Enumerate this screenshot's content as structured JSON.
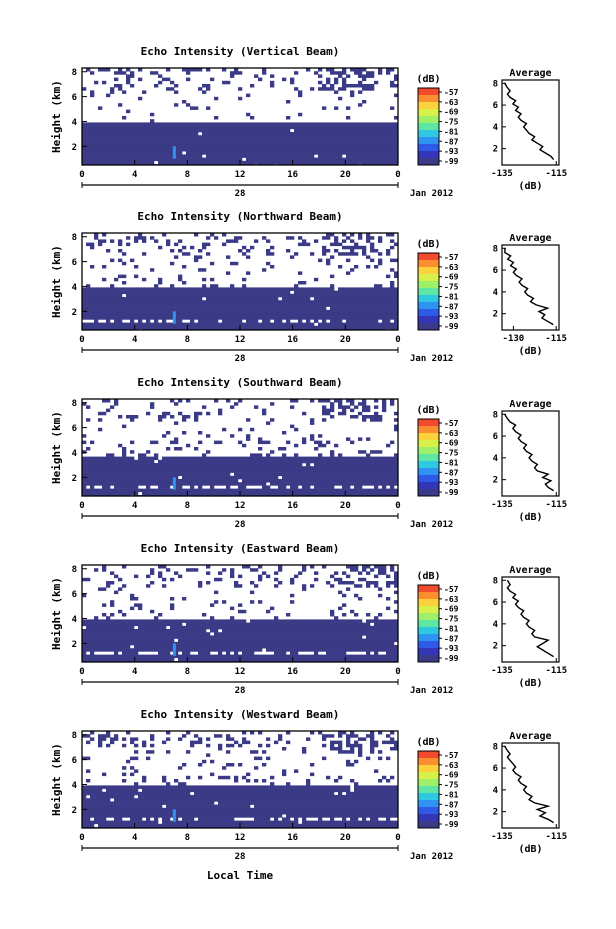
{
  "chart_data": {
    "type": "heatmap",
    "shared": {
      "xlabel": "Local Time",
      "date_label": "Jan 2012",
      "day_label": "28",
      "x_ticks": [
        "0",
        "4",
        "8",
        "12",
        "16",
        "20",
        "0"
      ],
      "xlim": [
        0,
        24
      ],
      "ylabel": "Height (km)",
      "y_ticks": [
        "2",
        "4",
        "6",
        "8"
      ],
      "ylim": [
        0.5,
        8.3
      ],
      "colorbar_unit": "(dB)",
      "colorbar_ticks": [
        "-57",
        "-63",
        "-69",
        "-75",
        "-81",
        "-87",
        "-93",
        "-99"
      ],
      "colorbar_colors": [
        "#f24a2c",
        "#fb8f2f",
        "#fbd23c",
        "#d8f04a",
        "#9ef06a",
        "#5ee7a4",
        "#2ec9e0",
        "#2f93f2",
        "#2f5ae8",
        "#3436b8",
        "#3b3a86"
      ],
      "profile_title": "Average",
      "profile_xlabel": "(dB)",
      "profile_y_ticks": [
        "2",
        "4",
        "6",
        "8"
      ]
    },
    "panels": [
      {
        "title": "Echo Intensity (Vertical Beam)",
        "profile_x_ticks": [
          "-135",
          "-115"
        ],
        "profile_xlim": [
          -135,
          -114
        ],
        "layer_top_km": 4.0,
        "profile": [
          [
            -116,
            1.0
          ],
          [
            -117,
            1.3
          ],
          [
            -119,
            1.6
          ],
          [
            -121,
            1.9
          ],
          [
            -120,
            2.2
          ],
          [
            -122,
            2.5
          ],
          [
            -124,
            2.8
          ],
          [
            -123,
            3.1
          ],
          [
            -125,
            3.4
          ],
          [
            -126,
            3.7
          ],
          [
            -127,
            4.0
          ],
          [
            -126,
            4.3
          ],
          [
            -128,
            4.6
          ],
          [
            -129,
            4.9
          ],
          [
            -128,
            5.2
          ],
          [
            -130,
            5.5
          ],
          [
            -129,
            5.8
          ],
          [
            -131,
            6.1
          ],
          [
            -130,
            6.4
          ],
          [
            -132,
            6.7
          ],
          [
            -133,
            7.0
          ],
          [
            -132,
            7.3
          ],
          [
            -133,
            7.6
          ],
          [
            -134,
            8.0
          ]
        ]
      },
      {
        "title": "Echo Intensity (Northward Beam)",
        "profile_x_ticks": [
          "-130",
          "-115"
        ],
        "profile_xlim": [
          -134,
          -114
        ],
        "layer_top_km": 4.0,
        "profile": [
          [
            -116,
            1.0
          ],
          [
            -118,
            1.3
          ],
          [
            -120,
            1.6
          ],
          [
            -119,
            1.9
          ],
          [
            -121,
            2.2
          ],
          [
            -118,
            2.5
          ],
          [
            -122,
            2.8
          ],
          [
            -124,
            3.1
          ],
          [
            -123,
            3.4
          ],
          [
            -125,
            3.7
          ],
          [
            -126,
            4.0
          ],
          [
            -125,
            4.3
          ],
          [
            -127,
            4.6
          ],
          [
            -128,
            4.9
          ],
          [
            -127,
            5.2
          ],
          [
            -129,
            5.5
          ],
          [
            -130,
            5.8
          ],
          [
            -129,
            6.1
          ],
          [
            -131,
            6.4
          ],
          [
            -130,
            6.7
          ],
          [
            -132,
            7.0
          ],
          [
            -131,
            7.3
          ],
          [
            -133,
            7.6
          ],
          [
            -133,
            8.0
          ]
        ]
      },
      {
        "title": "Echo Intensity (Southward Beam)",
        "profile_x_ticks": [
          "-135",
          "-115"
        ],
        "profile_xlim": [
          -135,
          -114
        ],
        "layer_top_km": 3.9,
        "profile": [
          [
            -116,
            1.0
          ],
          [
            -118,
            1.3
          ],
          [
            -119,
            1.6
          ],
          [
            -117,
            1.9
          ],
          [
            -120,
            2.2
          ],
          [
            -118,
            2.5
          ],
          [
            -122,
            2.8
          ],
          [
            -123,
            3.1
          ],
          [
            -122,
            3.4
          ],
          [
            -124,
            3.7
          ],
          [
            -125,
            4.0
          ],
          [
            -124,
            4.3
          ],
          [
            -126,
            4.6
          ],
          [
            -127,
            4.9
          ],
          [
            -126,
            5.2
          ],
          [
            -128,
            5.5
          ],
          [
            -129,
            5.8
          ],
          [
            -128,
            6.1
          ],
          [
            -130,
            6.4
          ],
          [
            -131,
            6.7
          ],
          [
            -130,
            7.0
          ],
          [
            -132,
            7.3
          ],
          [
            -133,
            7.6
          ],
          [
            -134,
            8.0
          ]
        ]
      },
      {
        "title": "Echo Intensity (Eastward Beam)",
        "profile_x_ticks": [
          "-135",
          "-115"
        ],
        "profile_xlim": [
          -135,
          -114
        ],
        "layer_top_km": 4.0,
        "profile": [
          [
            -116,
            1.0
          ],
          [
            -118,
            1.3
          ],
          [
            -120,
            1.6
          ],
          [
            -122,
            1.9
          ],
          [
            -120,
            2.2
          ],
          [
            -118,
            2.5
          ],
          [
            -123,
            2.8
          ],
          [
            -124,
            3.1
          ],
          [
            -123,
            3.4
          ],
          [
            -125,
            3.7
          ],
          [
            -126,
            4.0
          ],
          [
            -125,
            4.3
          ],
          [
            -127,
            4.6
          ],
          [
            -128,
            4.9
          ],
          [
            -127,
            5.2
          ],
          [
            -129,
            5.5
          ],
          [
            -130,
            5.8
          ],
          [
            -129,
            6.1
          ],
          [
            -131,
            6.4
          ],
          [
            -130,
            6.7
          ],
          [
            -132,
            7.0
          ],
          [
            -133,
            7.3
          ],
          [
            -132,
            7.6
          ],
          [
            -133,
            8.0
          ]
        ]
      },
      {
        "title": "Echo Intensity (Westward Beam)",
        "profile_x_ticks": [
          "-135",
          "-115"
        ],
        "profile_xlim": [
          -135,
          -114
        ],
        "layer_top_km": 4.0,
        "profile": [
          [
            -116,
            1.0
          ],
          [
            -118,
            1.3
          ],
          [
            -121,
            1.6
          ],
          [
            -119,
            1.9
          ],
          [
            -122,
            2.2
          ],
          [
            -118,
            2.5
          ],
          [
            -123,
            2.8
          ],
          [
            -125,
            3.1
          ],
          [
            -124,
            3.4
          ],
          [
            -126,
            3.7
          ],
          [
            -127,
            4.0
          ],
          [
            -126,
            4.3
          ],
          [
            -128,
            4.6
          ],
          [
            -129,
            4.9
          ],
          [
            -128,
            5.2
          ],
          [
            -130,
            5.5
          ],
          [
            -131,
            5.8
          ],
          [
            -130,
            6.1
          ],
          [
            -131,
            6.4
          ],
          [
            -132,
            6.7
          ],
          [
            -133,
            7.0
          ],
          [
            -132,
            7.3
          ],
          [
            -133,
            7.6
          ],
          [
            -134,
            8.0
          ]
        ]
      }
    ]
  }
}
